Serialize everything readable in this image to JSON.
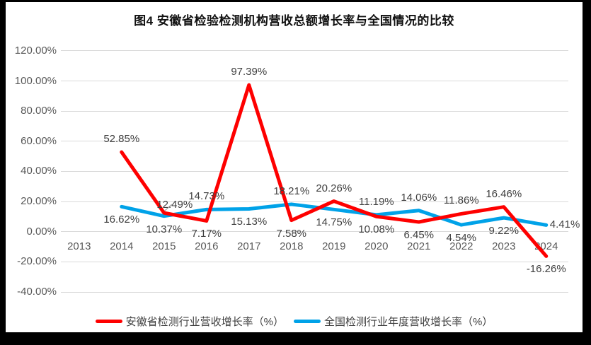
{
  "title": "图4 安徽省检验检测机构营收总额增长率与全国情况的比较",
  "chart_data": {
    "type": "line",
    "x_categories": [
      "2013",
      "2014",
      "2015",
      "2016",
      "2017",
      "2018",
      "2019",
      "2020",
      "2021",
      "2022",
      "2023",
      "2024"
    ],
    "series": [
      {
        "name": "全国检测行业年度营收增长率（%）",
        "color": "#00A2E8",
        "start_category": "2014",
        "values": [
          16.62,
          10.37,
          14.73,
          15.13,
          18.21,
          14.75,
          11.19,
          14.06,
          4.54,
          9.22,
          4.41
        ],
        "label_placements": [
          "below",
          "below",
          "above",
          "below",
          "above",
          "below",
          "above",
          "above",
          "below",
          "below",
          "right"
        ]
      },
      {
        "name": "安徽省检测行业营收增长率（%）",
        "color": "#FE0000",
        "start_category": "2014",
        "values": [
          52.85,
          12.49,
          7.17,
          97.39,
          7.58,
          20.26,
          10.08,
          6.45,
          11.86,
          16.46,
          -16.26
        ],
        "label_placements": [
          "above",
          "above-right-leader",
          "below",
          "above",
          "below",
          "above",
          "below",
          "below",
          "above",
          "above",
          "below"
        ]
      }
    ],
    "ylim": [
      -40,
      120
    ],
    "ytick_step": 20,
    "ytick_labels": [
      "120.00%",
      "100.00%",
      "80.00%",
      "60.00%",
      "40.00%",
      "20.00%",
      "0.00%",
      "-20.00%",
      "-40.00%"
    ],
    "label_format": "percent_2dp",
    "grid": true,
    "legend_position": "bottom"
  },
  "legend": {
    "items": [
      {
        "label": "安徽省检测行业营收增长率（%）",
        "color": "#FE0000"
      },
      {
        "label": "全国检测行业年度营收增长率（%）",
        "color": "#00A2E8"
      }
    ]
  },
  "colors": {
    "gridline": "#D9D9D9",
    "axis_text": "#595959",
    "data_label_text": "#3f3f3f",
    "leader_line": "#A6A6A6",
    "page_background": "#FFFFFF",
    "matte_background": "#000000"
  }
}
